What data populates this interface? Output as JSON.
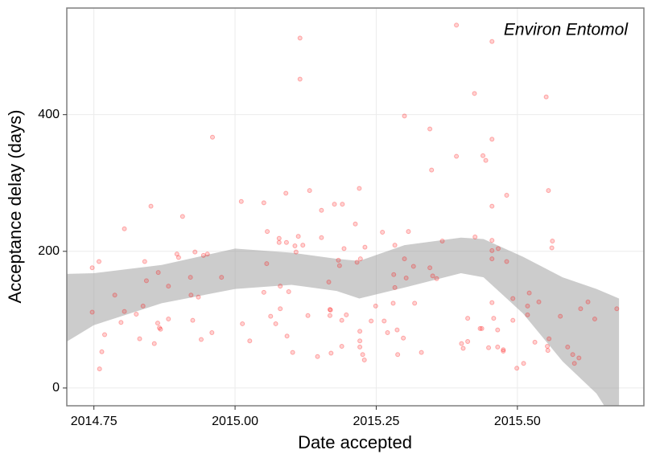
{
  "chart_data": {
    "type": "scatter",
    "xlabel": "Date accepted",
    "ylabel": "Acceptance delay (days)",
    "xlim": [
      2014.702,
      2015.724
    ],
    "ylim": [
      -26,
      556
    ],
    "xticks": [
      {
        "value": 2014.75,
        "label": "2014.75"
      },
      {
        "value": 2015.0,
        "label": "2015.00"
      },
      {
        "value": 2015.25,
        "label": "2015.25"
      },
      {
        "value": 2015.5,
        "label": "2015.50"
      }
    ],
    "yticks": [
      0,
      200,
      400
    ],
    "grid": true,
    "legend": "top-right",
    "series": [
      {
        "name": "Environ Entomol",
        "color": "#ff0000",
        "x": [
          2014.747,
          2014.747,
          2014.759,
          2014.76,
          2014.764,
          2014.769,
          2014.787,
          2014.798,
          2014.804,
          2014.804,
          2014.825,
          2014.831,
          2014.837,
          2014.84,
          2014.843,
          2014.851,
          2014.857,
          2014.863,
          2014.864,
          2014.866,
          2014.868,
          2014.882,
          2014.882,
          2014.897,
          2014.9,
          2014.907,
          2014.921,
          2014.922,
          2014.925,
          2014.929,
          2014.935,
          2014.94,
          2014.944,
          2014.951,
          2014.959,
          2014.96,
          2014.976,
          2015.011,
          2015.013,
          2015.026,
          2015.051,
          2015.051,
          2015.056,
          2015.057,
          2015.063,
          2015.072,
          2015.078,
          2015.078,
          2015.08,
          2015.08,
          2015.09,
          2015.091,
          2015.092,
          2015.095,
          2015.102,
          2015.106,
          2015.108,
          2015.112,
          2015.115,
          2015.115,
          2015.12,
          2015.129,
          2015.132,
          2015.146,
          2015.153,
          2015.153,
          2015.166,
          2015.168,
          2015.168,
          2015.169,
          2015.17,
          2015.176,
          2015.183,
          2015.185,
          2015.189,
          2015.189,
          2015.19,
          2015.193,
          2015.197,
          2015.213,
          2015.216,
          2015.22,
          2015.221,
          2015.221,
          2015.221,
          2015.222,
          2015.226,
          2015.229,
          2015.23,
          2015.241,
          2015.249,
          2015.261,
          2015.264,
          2015.27,
          2015.28,
          2015.281,
          2015.283,
          2015.283,
          2015.288,
          2015.287,
          2015.298,
          2015.3,
          2015.3,
          2015.303,
          2015.307,
          2015.316,
          2015.318,
          2015.33,
          2015.345,
          2015.345,
          2015.348,
          2015.35,
          2015.357,
          2015.367,
          2015.392,
          2015.392,
          2015.401,
          2015.404,
          2015.412,
          2015.412,
          2015.424,
          2015.425,
          2015.434,
          2015.437,
          2015.439,
          2015.444,
          2015.449,
          2015.455,
          2015.455,
          2015.455,
          2015.455,
          2015.455,
          2015.455,
          2015.455,
          2015.458,
          2015.465,
          2015.465,
          2015.466,
          2015.475,
          2015.475,
          2015.481,
          2015.481,
          2015.492,
          2015.492,
          2015.499,
          2015.511,
          2015.518,
          2015.518,
          2015.521,
          2015.531,
          2015.538,
          2015.551,
          2015.553,
          2015.554,
          2015.555,
          2015.556,
          2015.562,
          2015.561,
          2015.576,
          2015.589,
          2015.598,
          2015.601,
          2015.609,
          2015.612,
          2015.625,
          2015.637,
          2015.676
        ],
        "y": [
          111,
          176,
          185,
          28,
          53,
          78,
          136,
          96,
          233,
          112,
          108,
          72,
          120,
          185,
          157,
          266,
          65,
          95,
          169,
          88,
          86,
          149,
          101,
          196,
          191,
          251,
          162,
          136,
          99,
          199,
          133,
          71,
          194,
          196,
          81,
          367,
          162,
          273,
          94,
          69,
          271,
          140,
          182,
          229,
          105,
          94,
          219,
          213,
          116,
          149,
          285,
          213,
          76,
          141,
          52,
          208,
          199,
          222,
          512,
          452,
          209,
          106,
          289,
          46,
          260,
          220,
          155,
          106,
          115,
          114,
          51,
          269,
          187,
          179,
          99,
          61,
          269,
          204,
          107,
          240,
          184,
          292,
          83,
          69,
          60,
          189,
          49,
          41,
          206,
          98,
          120,
          228,
          98,
          81,
          124,
          166,
          209,
          147,
          49,
          85,
          73,
          398,
          189,
          161,
          229,
          178,
          124,
          52,
          176,
          379,
          319,
          164,
          160,
          215,
          531,
          339,
          65,
          58,
          102,
          68,
          431,
          221,
          87,
          87,
          340,
          333,
          59,
          507,
          364,
          266,
          216,
          201,
          189,
          125,
          102,
          85,
          60,
          204,
          56,
          54,
          282,
          185,
          99,
          131,
          29,
          36,
          120,
          107,
          139,
          67,
          126,
          426,
          61,
          55,
          289,
          72,
          215,
          205,
          105,
          60,
          49,
          36,
          44,
          116,
          126,
          101,
          116
        ]
      }
    ],
    "band": {
      "color": "#999999",
      "x": [
        2014.702,
        2014.75,
        2014.87,
        2015.0,
        2015.1,
        2015.18,
        2015.22,
        2015.3,
        2015.4,
        2015.44,
        2015.51,
        2015.58,
        2015.64,
        2015.68
      ],
      "upper": [
        167,
        168,
        180,
        204,
        198,
        189,
        186,
        209,
        220,
        218,
        192,
        162,
        145,
        131
      ],
      "lower": [
        68,
        92,
        124,
        145,
        151,
        142,
        131,
        147,
        168,
        162,
        109,
        39,
        -8,
        -60
      ]
    }
  }
}
